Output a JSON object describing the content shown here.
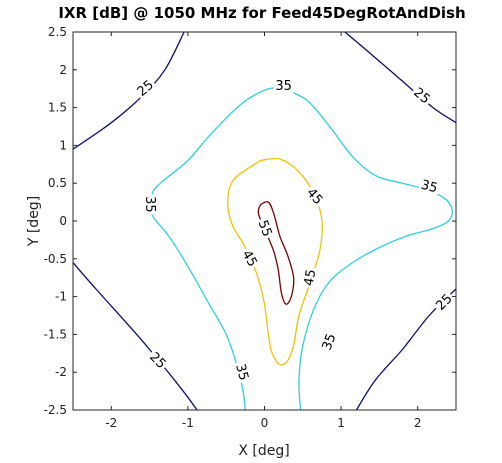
{
  "chart_data": {
    "type": "contour",
    "title": "IXR [dB] @ 1050 MHz for Feed45DegRotAndDish",
    "xlabel": "X [deg]",
    "ylabel": "Y [deg]",
    "xlim": [
      -2.5,
      2.5
    ],
    "ylim": [
      -2.5,
      2.5
    ],
    "x_ticks": [
      -2,
      -1,
      0,
      1,
      2
    ],
    "y_ticks": [
      2.5,
      2,
      1.5,
      1,
      0.5,
      0,
      -0.5,
      -1,
      -1.5,
      -2,
      -2.5
    ],
    "x_tick_labels": [
      "-2",
      "-1",
      "0",
      "1",
      "2"
    ],
    "y_tick_labels": [
      "2.5",
      "2",
      "1.5",
      "1",
      "0.5",
      "0",
      "-0.5",
      "-1",
      "-1.5",
      "-2",
      "-2.5"
    ],
    "grid": false,
    "levels": [
      {
        "level": 25,
        "color": "#0d0d6b",
        "paths": [
          [
            [
              -2.5,
              0.95
            ],
            [
              -2.0,
              1.3
            ],
            [
              -1.6,
              1.65
            ],
            [
              -1.3,
              2.0
            ],
            [
              -1.05,
              2.5
            ]
          ],
          [
            [
              1.05,
              2.5
            ],
            [
              1.4,
              2.2
            ],
            [
              1.8,
              1.85
            ],
            [
              2.2,
              1.5
            ],
            [
              2.5,
              1.3
            ]
          ],
          [
            [
              -2.5,
              -0.55
            ],
            [
              -2.2,
              -0.9
            ],
            [
              -1.8,
              -1.35
            ],
            [
              -1.5,
              -1.7
            ],
            [
              -1.1,
              -2.2
            ],
            [
              -0.88,
              -2.5
            ]
          ],
          [
            [
              1.2,
              -2.5
            ],
            [
              1.45,
              -2.1
            ],
            [
              1.8,
              -1.7
            ],
            [
              2.15,
              -1.25
            ],
            [
              2.5,
              -0.9
            ]
          ]
        ],
        "labels": [
          {
            "text": "25",
            "x": -1.55,
            "y": 1.75,
            "angle": -40
          },
          {
            "text": "25",
            "x": 2.05,
            "y": 1.65,
            "angle": 40
          },
          {
            "text": "25",
            "x": -1.4,
            "y": -1.85,
            "angle": 45
          },
          {
            "text": "25",
            "x": 2.35,
            "y": -1.08,
            "angle": -45
          }
        ]
      },
      {
        "level": 35,
        "color": "#2ecfe0",
        "paths": [
          [
            [
              0.2,
              1.77
            ],
            [
              0.55,
              1.6
            ],
            [
              0.85,
              1.25
            ],
            [
              1.15,
              0.85
            ],
            [
              1.45,
              0.6
            ],
            [
              1.8,
              0.5
            ],
            [
              2.1,
              0.42
            ],
            [
              2.35,
              0.3
            ],
            [
              2.45,
              0.15
            ],
            [
              2.4,
              0.0
            ],
            [
              2.2,
              -0.1
            ],
            [
              1.85,
              -0.2
            ],
            [
              1.5,
              -0.35
            ],
            [
              1.15,
              -0.55
            ],
            [
              0.85,
              -0.8
            ],
            [
              0.65,
              -1.15
            ],
            [
              0.5,
              -1.65
            ],
            [
              0.45,
              -2.1
            ],
            [
              0.47,
              -2.5
            ]
          ],
          [
            [
              0.2,
              1.77
            ],
            [
              0.0,
              1.73
            ],
            [
              -0.3,
              1.55
            ],
            [
              -0.7,
              1.15
            ],
            [
              -1.0,
              0.8
            ],
            [
              -1.3,
              0.55
            ],
            [
              -1.45,
              0.4
            ],
            [
              -1.48,
              0.2
            ],
            [
              -1.45,
              0.05
            ],
            [
              -1.25,
              -0.2
            ],
            [
              -1.0,
              -0.6
            ],
            [
              -0.75,
              -1.05
            ],
            [
              -0.5,
              -1.5
            ],
            [
              -0.35,
              -1.95
            ],
            [
              -0.28,
              -2.25
            ],
            [
              -0.25,
              -2.5
            ]
          ]
        ],
        "labels": [
          {
            "text": "35",
            "x": 0.25,
            "y": 1.78,
            "angle": 0
          },
          {
            "text": "35",
            "x": 2.15,
            "y": 0.45,
            "angle": 15
          },
          {
            "text": "35",
            "x": -1.5,
            "y": 0.22,
            "angle": 90
          },
          {
            "text": "35",
            "x": 0.85,
            "y": -1.6,
            "angle": -70
          },
          {
            "text": "35",
            "x": -0.3,
            "y": -2.0,
            "angle": 75
          }
        ]
      },
      {
        "level": 45,
        "color": "#f2c200",
        "paths": [
          [
            [
              -0.05,
              0.8
            ],
            [
              0.2,
              0.82
            ],
            [
              0.45,
              0.65
            ],
            [
              0.65,
              0.35
            ],
            [
              0.75,
              0.0
            ],
            [
              0.72,
              -0.4
            ],
            [
              0.6,
              -0.8
            ],
            [
              0.45,
              -1.25
            ],
            [
              0.38,
              -1.65
            ],
            [
              0.3,
              -1.85
            ],
            [
              0.2,
              -1.9
            ],
            [
              0.1,
              -1.75
            ],
            [
              0.05,
              -1.5
            ],
            [
              0.0,
              -1.1
            ],
            [
              -0.1,
              -0.7
            ],
            [
              -0.25,
              -0.35
            ],
            [
              -0.42,
              -0.05
            ],
            [
              -0.48,
              0.25
            ],
            [
              -0.4,
              0.55
            ],
            [
              -0.05,
              0.8
            ]
          ]
        ],
        "labels": [
          {
            "text": "45",
            "x": 0.65,
            "y": 0.32,
            "angle": 50
          },
          {
            "text": "45",
            "x": -0.2,
            "y": -0.5,
            "angle": 60
          },
          {
            "text": "45",
            "x": 0.6,
            "y": -0.75,
            "angle": -80
          }
        ]
      },
      {
        "level": 55,
        "color": "#7a0000",
        "paths": [
          [
            [
              -0.05,
              0.22
            ],
            [
              0.05,
              0.25
            ],
            [
              0.12,
              0.1
            ],
            [
              0.2,
              -0.2
            ],
            [
              0.3,
              -0.45
            ],
            [
              0.38,
              -0.75
            ],
            [
              0.35,
              -1.0
            ],
            [
              0.28,
              -1.1
            ],
            [
              0.22,
              -0.95
            ],
            [
              0.18,
              -0.65
            ],
            [
              0.12,
              -0.4
            ],
            [
              0.02,
              -0.15
            ],
            [
              -0.08,
              0.1
            ],
            [
              -0.05,
              0.22
            ]
          ]
        ],
        "labels": [
          {
            "text": "55",
            "x": 0.0,
            "y": -0.1,
            "angle": 70
          }
        ]
      }
    ]
  }
}
